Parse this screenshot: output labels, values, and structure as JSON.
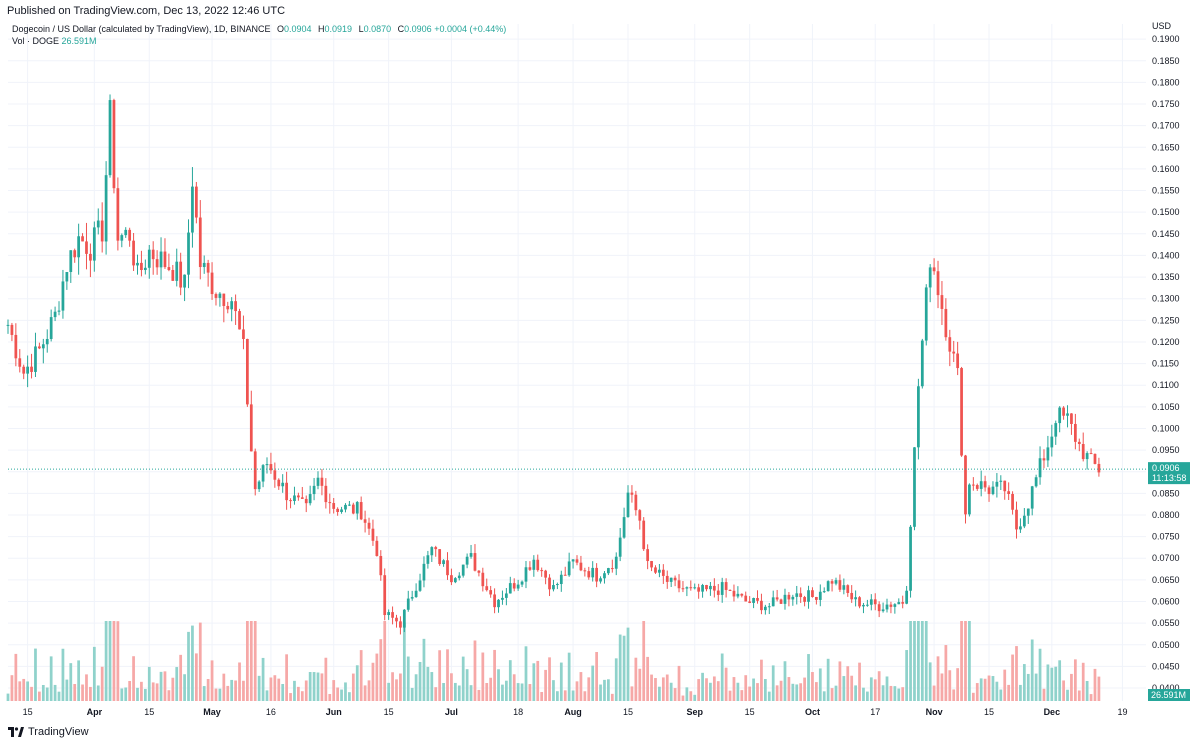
{
  "header": {
    "published": "Published on TradingView.com, Dec 13, 2022 12:46 UTC"
  },
  "legend": {
    "title": "Dogecoin / US Dollar (calculated by TradingView), 1D, BINANCE",
    "o_key": "O",
    "o": "0.0904",
    "h_key": "H",
    "h": "0.0919",
    "l_key": "L",
    "l": "0.0870",
    "c_key": "C",
    "c": "0.0906",
    "change": "+0.0004 (+0.44%)",
    "vol_key": "Vol · DOGE",
    "vol": "26.591M"
  },
  "footer": {
    "brand": "TradingView"
  },
  "colors": {
    "up": "#26a69a",
    "down": "#ef5350",
    "up_vol": "#8fd2cb",
    "down_vol": "#f6a8a7",
    "grid": "#f0f3fa"
  },
  "chart_data": {
    "type": "candlestick",
    "symbol": "DOGEUSD",
    "interval": "1D",
    "exchange": "BINANCE",
    "currency_label": "USD",
    "y_ticks": [
      "0.1900",
      "0.1850",
      "0.1800",
      "0.1750",
      "0.1700",
      "0.1650",
      "0.1600",
      "0.1550",
      "0.1500",
      "0.1450",
      "0.1400",
      "0.1350",
      "0.1300",
      "0.1250",
      "0.1200",
      "0.1150",
      "0.1100",
      "0.1050",
      "0.1000",
      "0.0950",
      "0.0900",
      "0.0850",
      "0.0800",
      "0.0750",
      "0.0700",
      "0.0650",
      "0.0600",
      "0.0550",
      "0.0500",
      "0.0450",
      "0.0400"
    ],
    "x_ticks": [
      "15",
      "Apr",
      "15",
      "May",
      "16",
      "Jun",
      "15",
      "Jul",
      "18",
      "Aug",
      "15",
      "Sep",
      "15",
      "Oct",
      "17",
      "Nov",
      "15",
      "Dec",
      "19"
    ],
    "x_tick_dates": [
      "2022-03-15",
      "2022-04-01",
      "2022-04-15",
      "2022-05-01",
      "2022-05-16",
      "2022-06-01",
      "2022-06-15",
      "2022-07-01",
      "2022-07-18",
      "2022-08-01",
      "2022-08-15",
      "2022-09-01",
      "2022-09-15",
      "2022-10-01",
      "2022-10-17",
      "2022-11-01",
      "2022-11-15",
      "2022-12-01",
      "2022-12-19"
    ],
    "last_price": "0.0906",
    "countdown": "11:13:58",
    "last_volume": "26.591M",
    "anchors": [
      {
        "date": "2022-03-10",
        "close": 0.124
      },
      {
        "date": "2022-03-14",
        "close": 0.113
      },
      {
        "date": "2022-03-18",
        "close": 0.118
      },
      {
        "date": "2022-03-22",
        "close": 0.126
      },
      {
        "date": "2022-03-25",
        "close": 0.138
      },
      {
        "date": "2022-03-28",
        "close": 0.144
      },
      {
        "date": "2022-03-31",
        "close": 0.142
      },
      {
        "date": "2022-04-03",
        "close": 0.146
      },
      {
        "date": "2022-04-05",
        "close": 0.172
      },
      {
        "date": "2022-04-07",
        "close": 0.144
      },
      {
        "date": "2022-04-10",
        "close": 0.145
      },
      {
        "date": "2022-04-12",
        "close": 0.135
      },
      {
        "date": "2022-04-15",
        "close": 0.141
      },
      {
        "date": "2022-04-18",
        "close": 0.139
      },
      {
        "date": "2022-04-21",
        "close": 0.137
      },
      {
        "date": "2022-04-24",
        "close": 0.133
      },
      {
        "date": "2022-04-26",
        "close": 0.158
      },
      {
        "date": "2022-04-28",
        "close": 0.138
      },
      {
        "date": "2022-05-02",
        "close": 0.132
      },
      {
        "date": "2022-05-06",
        "close": 0.13
      },
      {
        "date": "2022-05-09",
        "close": 0.118
      },
      {
        "date": "2022-05-11",
        "close": 0.095
      },
      {
        "date": "2022-05-12",
        "close": 0.086
      },
      {
        "date": "2022-05-15",
        "close": 0.092
      },
      {
        "date": "2022-05-20",
        "close": 0.085
      },
      {
        "date": "2022-05-25",
        "close": 0.081
      },
      {
        "date": "2022-05-28",
        "close": 0.088
      },
      {
        "date": "2022-06-01",
        "close": 0.082
      },
      {
        "date": "2022-06-08",
        "close": 0.081
      },
      {
        "date": "2022-06-12",
        "close": 0.072
      },
      {
        "date": "2022-06-14",
        "close": 0.057
      },
      {
        "date": "2022-06-18",
        "close": 0.055
      },
      {
        "date": "2022-06-22",
        "close": 0.064
      },
      {
        "date": "2022-06-26",
        "close": 0.072
      },
      {
        "date": "2022-07-01",
        "close": 0.066
      },
      {
        "date": "2022-07-06",
        "close": 0.07
      },
      {
        "date": "2022-07-12",
        "close": 0.06
      },
      {
        "date": "2022-07-18",
        "close": 0.065
      },
      {
        "date": "2022-07-22",
        "close": 0.07
      },
      {
        "date": "2022-07-27",
        "close": 0.063
      },
      {
        "date": "2022-08-01",
        "close": 0.069
      },
      {
        "date": "2022-08-07",
        "close": 0.066
      },
      {
        "date": "2022-08-12",
        "close": 0.07
      },
      {
        "date": "2022-08-15",
        "close": 0.085
      },
      {
        "date": "2022-08-18",
        "close": 0.079
      },
      {
        "date": "2022-08-20",
        "close": 0.068
      },
      {
        "date": "2022-08-26",
        "close": 0.064
      },
      {
        "date": "2022-09-01",
        "close": 0.062
      },
      {
        "date": "2022-09-08",
        "close": 0.063
      },
      {
        "date": "2022-09-14",
        "close": 0.06
      },
      {
        "date": "2022-09-20",
        "close": 0.059
      },
      {
        "date": "2022-09-26",
        "close": 0.062
      },
      {
        "date": "2022-10-01",
        "close": 0.061
      },
      {
        "date": "2022-10-06",
        "close": 0.065
      },
      {
        "date": "2022-10-12",
        "close": 0.06
      },
      {
        "date": "2022-10-18",
        "close": 0.059
      },
      {
        "date": "2022-10-24",
        "close": 0.06
      },
      {
        "date": "2022-10-25",
        "close": 0.064
      },
      {
        "date": "2022-10-26",
        "close": 0.079
      },
      {
        "date": "2022-10-28",
        "close": 0.11
      },
      {
        "date": "2022-10-29",
        "close": 0.12
      },
      {
        "date": "2022-10-31",
        "close": 0.14
      },
      {
        "date": "2022-11-01",
        "close": 0.137
      },
      {
        "date": "2022-11-04",
        "close": 0.124
      },
      {
        "date": "2022-11-07",
        "close": 0.112
      },
      {
        "date": "2022-11-09",
        "close": 0.08
      },
      {
        "date": "2022-11-10",
        "close": 0.088
      },
      {
        "date": "2022-11-15",
        "close": 0.086
      },
      {
        "date": "2022-11-19",
        "close": 0.086
      },
      {
        "date": "2022-11-22",
        "close": 0.077
      },
      {
        "date": "2022-11-25",
        "close": 0.083
      },
      {
        "date": "2022-11-28",
        "close": 0.091
      },
      {
        "date": "2022-12-01",
        "close": 0.099
      },
      {
        "date": "2022-12-02",
        "close": 0.103
      },
      {
        "date": "2022-12-05",
        "close": 0.102
      },
      {
        "date": "2022-12-08",
        "close": 0.096
      },
      {
        "date": "2022-12-11",
        "close": 0.092
      },
      {
        "date": "2022-12-13",
        "close": 0.0906
      }
    ],
    "ylim": [
      0.037,
      0.1935
    ],
    "xlim": [
      "2022-03-10",
      "2022-12-25"
    ]
  }
}
